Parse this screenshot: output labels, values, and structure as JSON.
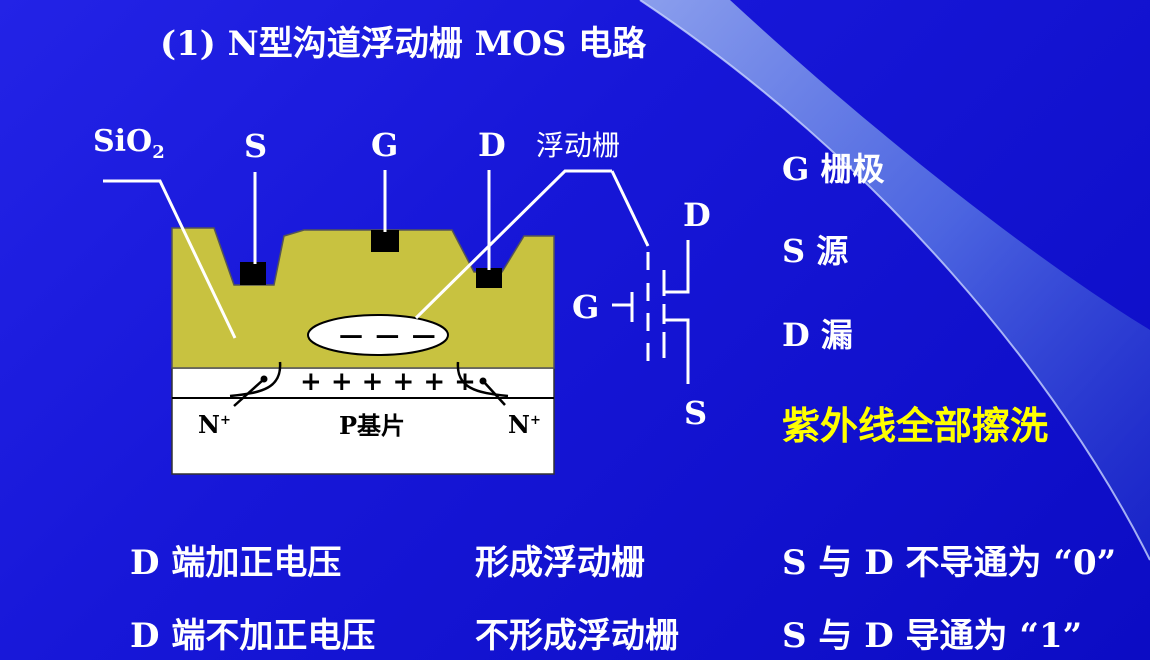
{
  "title": "(1) N型沟道浮动栅 MOS 电路",
  "diagram": {
    "sio2": "SiO",
    "sio2_sub": "2",
    "s_label": "S",
    "g_label": "G",
    "d_label": "D",
    "floating_gate_label": "浮动栅",
    "charge_minus": "— — —",
    "charge_plus": "+ + + + + +",
    "substrate": "P基片",
    "n_left": "N",
    "n_right": "N",
    "n_sup": "+",
    "symbol_d": "D",
    "symbol_g": "G",
    "symbol_s": "S"
  },
  "legend": {
    "g": "G 栅极",
    "s": "S  源",
    "d": "D 漏",
    "uv": "紫外线全部擦洗"
  },
  "rows": [
    {
      "condition": "D 端加正电压",
      "result": "形成浮动栅",
      "state": "S 与 D 不导通为 “0”"
    },
    {
      "condition": "D 端不加正电压",
      "result": "不形成浮动栅",
      "state": "S 与 D 导通为 “1”"
    }
  ],
  "colors": {
    "background": "#1818d8",
    "oxide": "#c8c240",
    "substrate": "#ffffff",
    "uv_text": "#ffff00",
    "beam": "#6f8fe8"
  }
}
